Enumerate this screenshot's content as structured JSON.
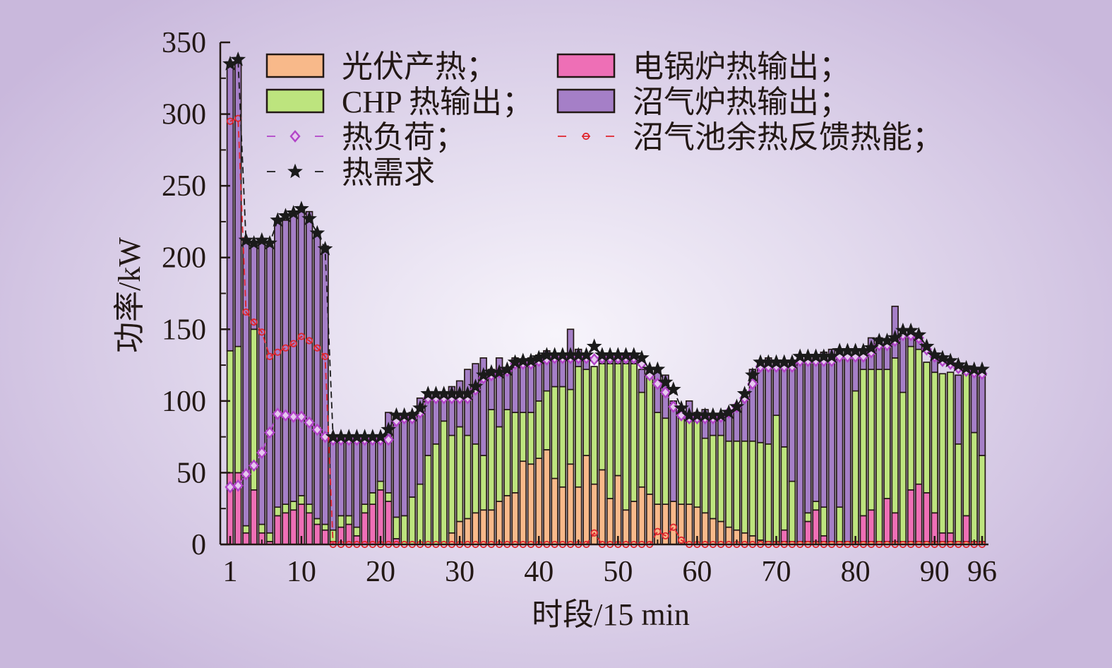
{
  "chart_data": {
    "type": "bar",
    "xlabel": "时段/15 min",
    "ylabel": "功率/kW",
    "xlim": [
      1,
      96
    ],
    "ylim": [
      0,
      350
    ],
    "xticks": [
      "1",
      "10",
      "20",
      "30",
      "40",
      "50",
      "60",
      "70",
      "80",
      "90",
      "96"
    ],
    "yticks": [
      "0",
      "50",
      "100",
      "150",
      "200",
      "250",
      "300",
      "350"
    ],
    "grid": false,
    "legend_position": "top",
    "x": [
      1,
      2,
      3,
      4,
      5,
      6,
      7,
      8,
      9,
      10,
      11,
      12,
      13,
      14,
      15,
      16,
      17,
      18,
      19,
      20,
      21,
      22,
      23,
      24,
      25,
      26,
      27,
      28,
      29,
      30,
      31,
      32,
      33,
      34,
      35,
      36,
      37,
      38,
      39,
      40,
      41,
      42,
      43,
      44,
      45,
      46,
      47,
      48,
      49,
      50,
      51,
      52,
      53,
      54,
      55,
      56,
      57,
      58,
      59,
      60,
      61,
      62,
      63,
      64,
      65,
      66,
      67,
      68,
      69,
      70,
      71,
      72,
      73,
      74,
      75,
      76,
      77,
      78,
      79,
      80,
      81,
      82,
      83,
      84,
      85,
      86,
      87,
      88,
      89,
      90,
      91,
      92,
      93,
      94,
      95,
      96
    ],
    "series": [
      {
        "name": "光伏产热；",
        "kind": "bar",
        "color": "#f8b98a",
        "values": [
          0,
          0,
          0,
          0,
          0,
          0,
          0,
          0,
          0,
          0,
          0,
          0,
          0,
          0,
          0,
          0,
          0,
          0,
          0,
          0,
          0,
          0,
          0,
          0,
          0,
          0,
          0,
          0,
          8,
          16,
          18,
          22,
          24,
          24,
          30,
          34,
          36,
          58,
          56,
          60,
          66,
          46,
          40,
          56,
          40,
          62,
          42,
          52,
          32,
          48,
          24,
          30,
          40,
          35,
          28,
          28,
          30,
          28,
          28,
          26,
          22,
          18,
          16,
          12,
          10,
          8,
          6,
          3,
          2,
          2,
          2,
          2,
          2,
          2,
          2,
          2,
          2,
          2,
          2,
          2,
          2,
          2,
          2,
          2,
          2,
          2,
          2,
          2,
          2,
          2,
          2,
          2,
          2,
          2,
          2,
          2
        ]
      },
      {
        "name": "电锅炉热输出；",
        "kind": "bar",
        "color": "#ee6fb6",
        "values": [
          50,
          50,
          8,
          38,
          8,
          2,
          20,
          22,
          24,
          28,
          22,
          14,
          10,
          2,
          12,
          14,
          6,
          22,
          28,
          38,
          30,
          4,
          0,
          0,
          0,
          0,
          0,
          0,
          0,
          0,
          0,
          0,
          0,
          0,
          0,
          0,
          0,
          0,
          0,
          0,
          0,
          0,
          0,
          0,
          0,
          0,
          0,
          0,
          0,
          0,
          0,
          0,
          0,
          0,
          0,
          0,
          0,
          0,
          0,
          0,
          0,
          0,
          0,
          0,
          0,
          0,
          0,
          0,
          0,
          0,
          8,
          0,
          0,
          14,
          22,
          4,
          0,
          0,
          0,
          0,
          18,
          22,
          0,
          30,
          20,
          0,
          36,
          40,
          34,
          20,
          6,
          6,
          0,
          18,
          0,
          0
        ]
      },
      {
        "name": "CHP 热输出；",
        "kind": "bar",
        "color": "#bde47e",
        "values": [
          85,
          88,
          5,
          112,
          6,
          6,
          6,
          6,
          6,
          6,
          6,
          4,
          4,
          8,
          8,
          6,
          6,
          6,
          8,
          6,
          6,
          15,
          20,
          33,
          42,
          62,
          70,
          86,
          68,
          66,
          58,
          48,
          38,
          70,
          52,
          60,
          56,
          34,
          36,
          40,
          41,
          64,
          70,
          52,
          84,
          60,
          82,
          74,
          94,
          78,
          102,
          96,
          66,
          82,
          64,
          60,
          0,
          60,
          60,
          60,
          52,
          58,
          60,
          60,
          62,
          64,
          66,
          68,
          68,
          88,
          58,
          42,
          0,
          6,
          6,
          20,
          0,
          24,
          0,
          105,
          102,
          98,
          120,
          90,
          108,
          104,
          100,
          94,
          91,
          98,
          111,
          112,
          68,
          100,
          76,
          60
        ]
      },
      {
        "name": "沼气炉热输出；",
        "kind": "bar",
        "color": "#a57fc7",
        "values": [
          200,
          200,
          200,
          60,
          198,
          200,
          200,
          198,
          200,
          200,
          204,
          200,
          194,
          64,
          56,
          56,
          64,
          48,
          40,
          32,
          56,
          70,
          70,
          59,
          60,
          42,
          34,
          18,
          34,
          32,
          46,
          56,
          68,
          28,
          48,
          28,
          38,
          34,
          38,
          32,
          28,
          22,
          22,
          42,
          12,
          8,
          0,
          6,
          6,
          6,
          6,
          6,
          16,
          0,
          30,
          30,
          70,
          2,
          12,
          6,
          20,
          15,
          14,
          20,
          24,
          28,
          50,
          56,
          60,
          38,
          60,
          84,
          126,
          110,
          102,
          108,
          134,
          108,
          132,
          28,
          14,
          22,
          22,
          18,
          36,
          40,
          10,
          10,
          0,
          12,
          0,
          0,
          48,
          2,
          44,
          60
        ]
      },
      {
        "name": "热负荷；",
        "kind": "line",
        "color": "#b244c8",
        "marker": "diamond",
        "values": [
          40,
          41,
          49,
          55,
          64,
          78,
          91,
          90,
          89,
          89,
          85,
          80,
          75,
          73,
          73,
          73,
          73,
          73,
          73,
          73,
          73,
          86,
          88,
          88,
          92,
          102,
          102,
          102,
          102,
          102,
          102,
          108,
          116,
          118,
          120,
          121,
          126,
          126,
          126,
          128,
          129,
          130,
          130,
          130,
          130,
          130,
          129,
          130,
          130,
          130,
          130,
          130,
          126,
          118,
          112,
          106,
          96,
          90,
          88,
          88,
          88,
          88,
          89,
          92,
          96,
          102,
          112,
          124,
          124,
          124,
          124,
          124,
          128,
          128,
          128,
          128,
          128,
          131,
          131,
          131,
          131,
          134,
          139,
          139,
          142,
          146,
          146,
          144,
          136,
          131,
          128,
          126,
          123,
          121,
          120,
          119
        ]
      },
      {
        "name": "沼气池余热反馈热能；",
        "kind": "line",
        "color": "#e0262e",
        "marker": "circle",
        "values": [
          295,
          297,
          162,
          155,
          148,
          131,
          134,
          137,
          140,
          145,
          142,
          137,
          131,
          0,
          0,
          0,
          0,
          0,
          0,
          0,
          0,
          0,
          0,
          0,
          0,
          0,
          0,
          0,
          0,
          0,
          0,
          0,
          0,
          0,
          0,
          0,
          0,
          0,
          0,
          0,
          0,
          0,
          0,
          0,
          0,
          0,
          8,
          0,
          0,
          0,
          0,
          0,
          0,
          0,
          9,
          6,
          12,
          3,
          0,
          0,
          0,
          0,
          0,
          0,
          0,
          0,
          0,
          0,
          0,
          0,
          0,
          0,
          0,
          0,
          0,
          0,
          0,
          0,
          0,
          0,
          0,
          0,
          0,
          0,
          0,
          0,
          0,
          0,
          0,
          0,
          0,
          0,
          0,
          0,
          0,
          0
        ]
      },
      {
        "name": "热需求",
        "kind": "line",
        "color": "#1a1a1a",
        "marker": "star",
        "values": [
          335,
          338,
          212,
          210,
          212,
          210,
          226,
          229,
          231,
          234,
          227,
          217,
          206,
          75,
          75,
          75,
          75,
          75,
          75,
          75,
          80,
          90,
          90,
          90,
          95,
          105,
          105,
          105,
          105,
          105,
          105,
          110,
          118,
          120,
          120,
          122,
          127,
          128,
          128,
          130,
          132,
          132,
          132,
          132,
          132,
          132,
          138,
          132,
          132,
          132,
          132,
          132,
          130,
          122,
          122,
          113,
          108,
          95,
          90,
          90,
          90,
          90,
          90,
          92,
          96,
          105,
          118,
          127,
          127,
          127,
          127,
          127,
          131,
          131,
          131,
          131,
          131,
          135,
          135,
          135,
          135,
          137,
          142,
          142,
          144,
          149,
          149,
          146,
          138,
          132,
          130,
          128,
          125,
          123,
          122,
          122
        ]
      }
    ]
  }
}
